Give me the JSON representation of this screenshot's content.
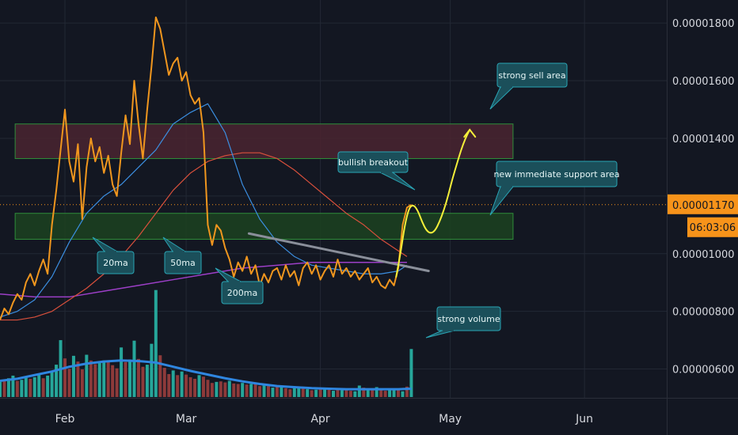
{
  "colors": {
    "background": "#131722",
    "grid": "#232834",
    "price": "#f0961e",
    "ma20": "#3b8ee0",
    "ma50": "#d9503c",
    "ma200": "#9c3fc7",
    "volume_up": "#26a69a",
    "volume_down": "#8d3a3a",
    "volume_ma": "#2f86e0",
    "projection": "#f4ef3a",
    "trendline": "#8a8f9a",
    "sell_zone": "#4a2530",
    "support_zone": "#1c4220",
    "zone_border": "#2f8d3a",
    "callout_fill": "#1b4f5a",
    "callout_border": "#2aa4b4",
    "price_tag": "#f7931a"
  },
  "chart_data": {
    "type": "line",
    "x_labels": [
      "Feb",
      "Mar",
      "Apr",
      "May",
      "Jun"
    ],
    "x_positions_day": [
      31,
      59,
      90,
      120,
      151
    ],
    "x_range_day": [
      16,
      170
    ],
    "y_range": [
      5e-06,
      1.88e-05
    ],
    "y_ticks": [
      6e-06,
      8e-06,
      1e-05,
      1.2e-05,
      1.4e-05,
      1.6e-05,
      1.8e-05
    ],
    "y_tick_labels": [
      "0.00000600",
      "0.00000800",
      "0.00001000",
      "",
      "0.00001400",
      "0.00001600",
      "0.00001800"
    ],
    "price_tag": {
      "value": 1.17e-05,
      "label": "0.00001170"
    },
    "timer_tag": {
      "label": "06:03:06"
    },
    "grid": true,
    "series": [
      {
        "key": "price",
        "days": [
          16,
          17,
          18,
          19,
          20,
          21,
          22,
          23,
          24,
          25,
          26,
          27,
          28,
          29,
          30,
          31,
          32,
          33,
          34,
          35,
          36,
          37,
          38,
          39,
          40,
          41,
          42,
          43,
          44,
          45,
          46,
          47,
          48,
          49,
          50,
          51,
          52,
          53,
          54,
          55,
          56,
          57,
          58,
          59,
          60,
          61,
          62,
          63,
          64,
          65,
          66,
          67,
          68,
          69,
          70,
          71,
          72,
          73,
          74,
          75,
          76,
          77,
          78,
          79,
          80,
          81,
          82,
          83,
          84,
          85,
          86,
          87,
          88,
          89,
          90,
          91,
          92,
          93,
          94,
          95,
          96,
          97,
          98,
          99,
          100,
          101,
          102,
          103,
          104,
          105,
          106,
          107,
          108,
          109,
          110,
          111
        ],
        "values": [
          7.7e-06,
          8.1e-06,
          7.9e-06,
          8.3e-06,
          8.6e-06,
          8.4e-06,
          9e-06,
          9.3e-06,
          8.9e-06,
          9.4e-06,
          9.8e-06,
          9.3e-06,
          1.1e-05,
          1.22e-05,
          1.36e-05,
          1.5e-05,
          1.32e-05,
          1.25e-05,
          1.38e-05,
          1.12e-05,
          1.3e-05,
          1.4e-05,
          1.32e-05,
          1.37e-05,
          1.28e-05,
          1.34e-05,
          1.24e-05,
          1.2e-05,
          1.35e-05,
          1.48e-05,
          1.38e-05,
          1.6e-05,
          1.45e-05,
          1.33e-05,
          1.5e-05,
          1.65e-05,
          1.82e-05,
          1.78e-05,
          1.7e-05,
          1.62e-05,
          1.66e-05,
          1.68e-05,
          1.6e-05,
          1.63e-05,
          1.55e-05,
          1.52e-05,
          1.54e-05,
          1.42e-05,
          1.1e-05,
          1.03e-05,
          1.1e-05,
          1.08e-05,
          1.02e-05,
          9.8e-06,
          9.2e-06,
          9.7e-06,
          9.4e-06,
          9.9e-06,
          9.3e-06,
          9.6e-06,
          8.9e-06,
          9.3e-06,
          9e-06,
          9.4e-06,
          9.5e-06,
          9.1e-06,
          9.6e-06,
          9.2e-06,
          9.4e-06,
          8.9e-06,
          9.5e-06,
          9.7e-06,
          9.3e-06,
          9.6e-06,
          9.1e-06,
          9.4e-06,
          9.6e-06,
          9.2e-06,
          9.8e-06,
          9.3e-06,
          9.5e-06,
          9.2e-06,
          9.4e-06,
          9.1e-06,
          9.3e-06,
          9.5e-06,
          9e-06,
          9.2e-06,
          8.9e-06,
          8.8e-06,
          9.1e-06,
          8.9e-06,
          9.5e-06,
          1.1e-05,
          1.16e-05,
          1.17e-05
        ]
      },
      {
        "key": "ma20",
        "days": [
          16,
          20,
          24,
          28,
          32,
          36,
          40,
          44,
          48,
          52,
          56,
          60,
          64,
          68,
          72,
          76,
          80,
          84,
          88,
          92,
          96,
          100,
          104,
          108,
          110
        ],
        "values": [
          7.8e-06,
          8e-06,
          8.4e-06,
          9.2e-06,
          1.04e-05,
          1.14e-05,
          1.2e-05,
          1.24e-05,
          1.3e-05,
          1.36e-05,
          1.45e-05,
          1.49e-05,
          1.52e-05,
          1.42e-05,
          1.24e-05,
          1.12e-05,
          1.04e-05,
          9.9e-06,
          9.6e-06,
          9.5e-06,
          9.4e-06,
          9.3e-06,
          9.3e-06,
          9.4e-06,
          9.6e-06
        ]
      },
      {
        "key": "ma50",
        "days": [
          16,
          20,
          24,
          28,
          32,
          36,
          40,
          44,
          48,
          52,
          56,
          60,
          64,
          68,
          72,
          76,
          80,
          84,
          88,
          92,
          96,
          100,
          104,
          108,
          110
        ],
        "values": [
          7.7e-06,
          7.7e-06,
          7.8e-06,
          8e-06,
          8.4e-06,
          8.8e-06,
          9.3e-06,
          9.9e-06,
          1.06e-05,
          1.14e-05,
          1.22e-05,
          1.28e-05,
          1.32e-05,
          1.34e-05,
          1.35e-05,
          1.35e-05,
          1.33e-05,
          1.29e-05,
          1.24e-05,
          1.19e-05,
          1.14e-05,
          1.1e-05,
          1.05e-05,
          1.01e-05,
          9.9e-06
        ]
      },
      {
        "key": "ma200",
        "days": [
          16,
          24,
          32,
          40,
          48,
          56,
          64,
          72,
          80,
          88,
          96,
          104,
          110
        ],
        "values": [
          8.6e-06,
          8.5e-06,
          8.5e-06,
          8.7e-06,
          8.9e-06,
          9.1e-06,
          9.3e-06,
          9.5e-06,
          9.6e-06,
          9.7e-06,
          9.7e-06,
          9.7e-06,
          9.7e-06
        ]
      }
    ],
    "volume": {
      "max": 20,
      "days": [
        16,
        17,
        18,
        19,
        20,
        21,
        22,
        23,
        24,
        25,
        26,
        27,
        28,
        29,
        30,
        31,
        32,
        33,
        34,
        35,
        36,
        37,
        38,
        39,
        40,
        41,
        42,
        43,
        44,
        45,
        46,
        47,
        48,
        49,
        50,
        51,
        52,
        53,
        54,
        55,
        56,
        57,
        58,
        59,
        60,
        61,
        62,
        63,
        64,
        65,
        66,
        67,
        68,
        69,
        70,
        71,
        72,
        73,
        74,
        75,
        76,
        77,
        78,
        79,
        80,
        81,
        82,
        83,
        84,
        85,
        86,
        87,
        88,
        89,
        90,
        91,
        92,
        93,
        94,
        95,
        96,
        97,
        98,
        99,
        100,
        101,
        102,
        103,
        104,
        105,
        106,
        107,
        108,
        109,
        110,
        111
      ],
      "values": [
        3,
        3.2,
        3.6,
        4.1,
        3.1,
        3.3,
        3.7,
        3.5,
        3.8,
        4.2,
        3.6,
        4.1,
        5,
        6.2,
        10.9,
        7.4,
        5.4,
        7.9,
        6.8,
        5.3,
        8.1,
        7,
        6.3,
        6.6,
        7,
        7,
        6.1,
        5.5,
        9.5,
        6.7,
        7.2,
        10.8,
        7.3,
        5.8,
        6.2,
        10.2,
        20.5,
        8,
        5.6,
        4.4,
        5.1,
        4.2,
        4.9,
        4.3,
        3.8,
        3.5,
        4.2,
        3.9,
        3.3,
        2.7,
        2.9,
        3,
        2.8,
        3.1,
        2.6,
        2.5,
        2.7,
        2.4,
        2.5,
        2.6,
        2.1,
        2.3,
        2.1,
        1.8,
        1.9,
        2,
        1.7,
        1.5,
        1.7,
        1.8,
        1.6,
        1.5,
        1.3,
        1.4,
        1.6,
        1.7,
        1.4,
        1.2,
        1.5,
        1.3,
        1.6,
        1.2,
        1.1,
        2.2,
        1.8,
        1.4,
        1.3,
        1.9,
        1.4,
        1.2,
        1.3,
        1.4,
        1.6,
        1.1,
        2,
        9.2
      ],
      "up": [
        1,
        0,
        1,
        1,
        0,
        1,
        1,
        0,
        1,
        1,
        0,
        1,
        1,
        1,
        1,
        0,
        0,
        1,
        0,
        0,
        1,
        0,
        0,
        1,
        1,
        0,
        0,
        0,
        1,
        0,
        1,
        1,
        0,
        0,
        1,
        1,
        1,
        0,
        0,
        0,
        1,
        0,
        1,
        0,
        0,
        0,
        1,
        0,
        0,
        0,
        1,
        0,
        0,
        1,
        0,
        0,
        1,
        0,
        1,
        0,
        0,
        1,
        0,
        1,
        0,
        1,
        0,
        0,
        1,
        1,
        0,
        1,
        0,
        1,
        0,
        1,
        0,
        1,
        0,
        1,
        0,
        0,
        1,
        1,
        0,
        1,
        0,
        1,
        0,
        0,
        1,
        1,
        0,
        1,
        0,
        1
      ],
      "ma_days": [
        16,
        20,
        24,
        28,
        32,
        36,
        40,
        44,
        48,
        52,
        56,
        60,
        64,
        68,
        72,
        76,
        80,
        84,
        88,
        92,
        96,
        100,
        104,
        108,
        111
      ],
      "ma_values": [
        3.1,
        3.5,
        4.2,
        4.9,
        5.8,
        6.4,
        6.8,
        7.0,
        6.9,
        6.6,
        5.8,
        5.0,
        4.3,
        3.6,
        3.0,
        2.5,
        2.1,
        1.9,
        1.7,
        1.6,
        1.5,
        1.5,
        1.5,
        1.5,
        1.6
      ]
    },
    "zones": [
      {
        "key": "sell_zone",
        "day_from": 19.5,
        "day_to": 134.5,
        "price_from": 1.33e-05,
        "price_to": 1.45e-05
      },
      {
        "key": "support_zone",
        "day_from": 19.5,
        "day_to": 134.5,
        "price_from": 1.05e-05,
        "price_to": 1.14e-05
      }
    ],
    "trendline": {
      "from": [
        73.5,
        1.07e-05
      ],
      "to": [
        115,
        9.4e-06
      ]
    },
    "projection": {
      "days": [
        107.5,
        108.5,
        109.5,
        110.5,
        111.5,
        112.5,
        113.5,
        114.5,
        115.5,
        116.5,
        117.5,
        118.5,
        119.5,
        120.5,
        121.5,
        122.5,
        123.5,
        124.5
      ],
      "values": [
        9.2e-06,
        1e-05,
        1.1e-05,
        1.16e-05,
        1.17e-05,
        1.15e-05,
        1.11e-05,
        1.08e-05,
        1.07e-05,
        1.08e-05,
        1.11e-05,
        1.15e-05,
        1.2e-05,
        1.26e-05,
        1.31e-05,
        1.36e-05,
        1.4e-05,
        1.43e-05
      ]
    },
    "annotations": [
      {
        "text": "20ma"
      },
      {
        "text": "50ma"
      },
      {
        "text": "200ma"
      },
      {
        "text": "bullish breakout"
      },
      {
        "text": "strong sell area"
      },
      {
        "text": "new immediate support area"
      },
      {
        "text": "strong volume"
      }
    ]
  }
}
